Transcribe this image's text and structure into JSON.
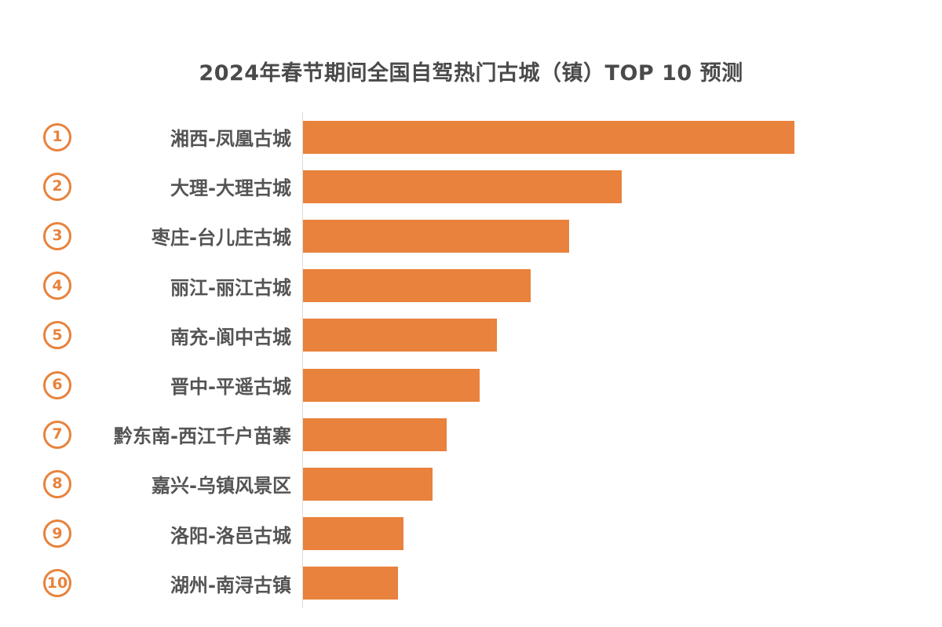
{
  "title": "2024年春节期间全国自驾热门古城（镇）TOP 10 预测",
  "colors": {
    "accent": "#E8823C",
    "label_text": "#545454",
    "title_text": "#4A4A4A",
    "axis_line": "#DCDCDC",
    "background": "#FFFFFF"
  },
  "chart_data": {
    "type": "bar",
    "orientation": "horizontal",
    "title": "2024年春节期间全国自驾热门古城（镇）TOP 10 预测",
    "rank_labels": [
      "1",
      "2",
      "3",
      "4",
      "5",
      "6",
      "7",
      "8",
      "9",
      "10"
    ],
    "categories": [
      "湘西-凤凰古城",
      "大理-大理古城",
      "枣庄-台儿庄古城",
      "丽江-丽江古城",
      "南充-阆中古城",
      "晋中-平遥古城",
      "黔东南-西江千户苗寨",
      "嘉兴-乌镇风景区",
      "洛阳-洛邑古城",
      "湖州-南浔古镇"
    ],
    "values_pct_of_max": [
      100,
      64.9,
      54.2,
      46.4,
      39.4,
      36.0,
      29.3,
      26.3,
      20.4,
      19.3
    ],
    "xlim": [
      0,
      100
    ],
    "value_labels_shown": false,
    "grid": false,
    "legend": false,
    "bar_color": "#E8823C"
  }
}
